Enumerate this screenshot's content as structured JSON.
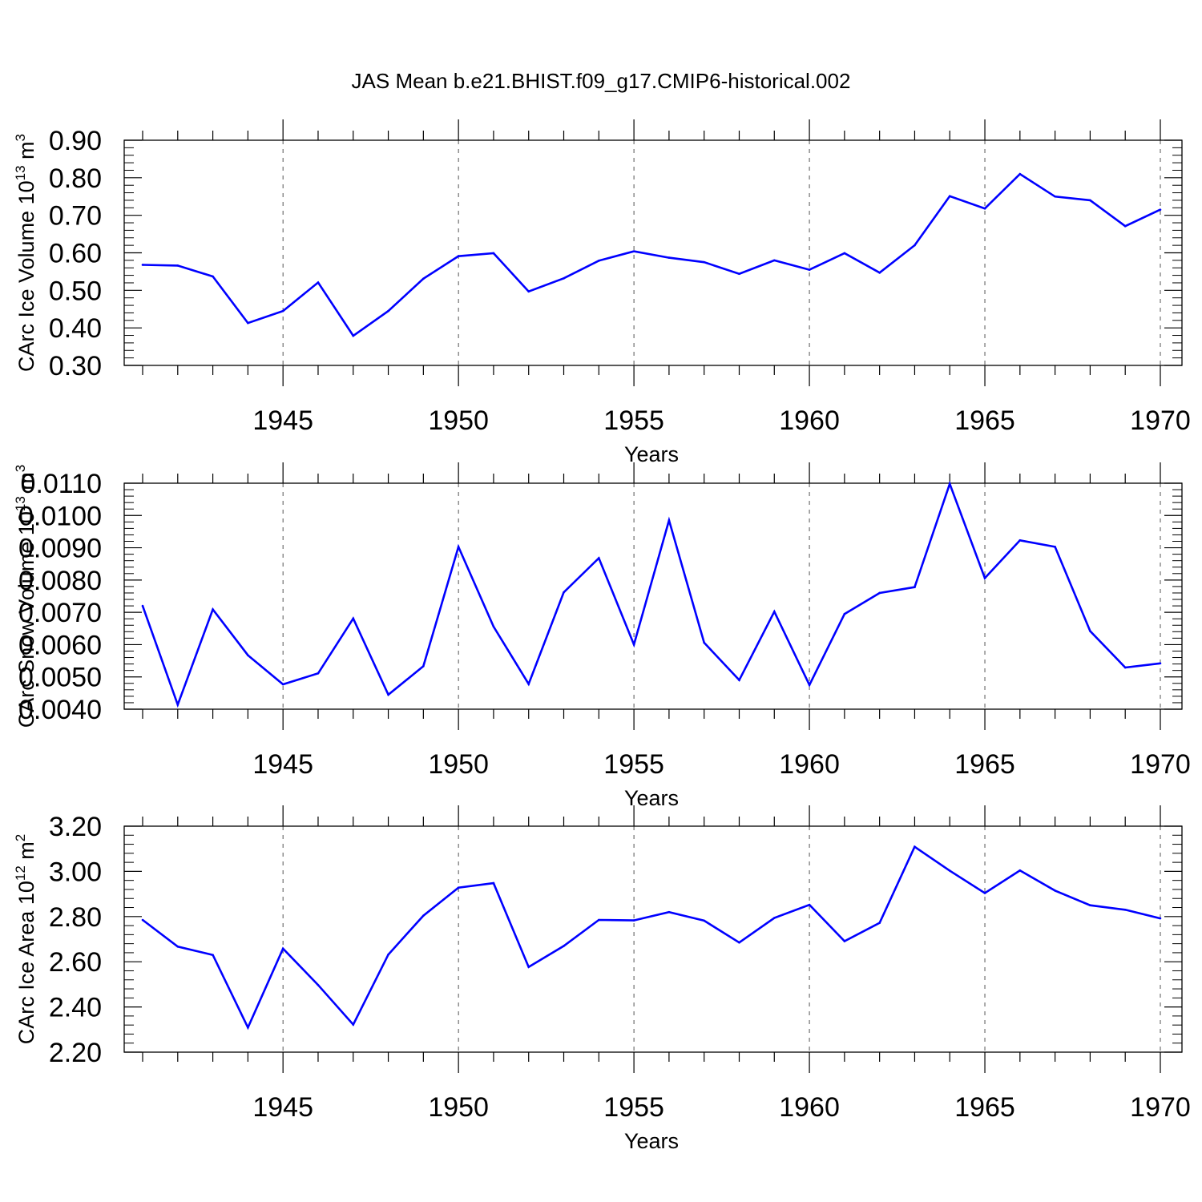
{
  "title": "JAS Mean b.e21.BHIST.f09_g17.CMIP6-historical.002",
  "colors": {
    "line": "#0000ff",
    "axis": "#000000",
    "grid": "#555555"
  },
  "chart_data": [
    {
      "type": "line",
      "xlabel": "Years",
      "ylabel": {
        "main": "CArc Ice Volume 10",
        "power": "13",
        "unit": " m",
        "unit_power": "3"
      },
      "xlim": [
        1941,
        1970
      ],
      "ylim": [
        0.3,
        0.9
      ],
      "y_ticks": [
        "0.30",
        "0.40",
        "0.50",
        "0.60",
        "0.70",
        "0.80",
        "0.90"
      ],
      "x_ticks": [
        "1945",
        "1950",
        "1955",
        "1960",
        "1965",
        "1970"
      ],
      "grid": "x-dashed",
      "series": [
        {
          "name": "CArc Ice Volume",
          "x": [
            1941,
            1942,
            1943,
            1944,
            1945,
            1946,
            1947,
            1948,
            1949,
            1950,
            1951,
            1952,
            1953,
            1954,
            1955,
            1956,
            1957,
            1958,
            1959,
            1960,
            1961,
            1962,
            1963,
            1964,
            1965,
            1966,
            1967,
            1968,
            1969,
            1970
          ],
          "values": [
            0.568,
            0.566,
            0.537,
            0.413,
            0.445,
            0.521,
            0.379,
            0.445,
            0.531,
            0.591,
            0.599,
            0.497,
            0.532,
            0.579,
            0.604,
            0.587,
            0.575,
            0.544,
            0.58,
            0.555,
            0.599,
            0.547,
            0.62,
            0.751,
            0.718,
            0.81,
            0.75,
            0.74,
            0.671,
            0.715
          ]
        }
      ]
    },
    {
      "type": "line",
      "xlabel": "Years",
      "ylabel": {
        "main": "CArc Snow Volume 10",
        "power": "13",
        "unit": " m",
        "unit_power": "3"
      },
      "xlim": [
        1941,
        1970
      ],
      "ylim": [
        0.004,
        0.011
      ],
      "y_ticks": [
        "0.0040",
        "0.0050",
        "0.0060",
        "0.0070",
        "0.0080",
        "0.0090",
        "0.0100",
        "0.0110"
      ],
      "x_ticks": [
        "1945",
        "1950",
        "1955",
        "1960",
        "1965",
        "1970"
      ],
      "grid": "x-dashed",
      "series": [
        {
          "name": "CArc Snow Volume",
          "x": [
            1941,
            1942,
            1943,
            1944,
            1945,
            1946,
            1947,
            1948,
            1949,
            1950,
            1951,
            1952,
            1953,
            1954,
            1955,
            1956,
            1957,
            1958,
            1959,
            1960,
            1961,
            1962,
            1963,
            1964,
            1965,
            1966,
            1967,
            1968,
            1969,
            1970
          ],
          "values": [
            0.0072,
            0.00414,
            0.00709,
            0.00567,
            0.00477,
            0.00511,
            0.00681,
            0.00445,
            0.00533,
            0.00903,
            0.00656,
            0.00478,
            0.00762,
            0.00868,
            0.006,
            0.00985,
            0.00606,
            0.0049,
            0.00702,
            0.00475,
            0.00695,
            0.0076,
            0.00778,
            0.01098,
            0.00806,
            0.00923,
            0.00903,
            0.00642,
            0.00529,
            0.00542
          ]
        }
      ]
    },
    {
      "type": "line",
      "xlabel": "Years",
      "ylabel": {
        "main": "CArc Ice Area 10",
        "power": "12",
        "unit": " m",
        "unit_power": "2"
      },
      "xlim": [
        1941,
        1970
      ],
      "ylim": [
        2.2,
        3.2
      ],
      "y_ticks": [
        "2.20",
        "2.40",
        "2.60",
        "2.80",
        "3.00",
        "3.20"
      ],
      "x_ticks": [
        "1945",
        "1950",
        "1955",
        "1960",
        "1965",
        "1970"
      ],
      "grid": "x-dashed",
      "series": [
        {
          "name": "CArc Ice Area",
          "x": [
            1941,
            1942,
            1943,
            1944,
            1945,
            1946,
            1947,
            1948,
            1949,
            1950,
            1951,
            1952,
            1953,
            1954,
            1955,
            1956,
            1957,
            1958,
            1959,
            1960,
            1961,
            1962,
            1963,
            1964,
            1965,
            1966,
            1967,
            1968,
            1969,
            1970
          ],
          "values": [
            2.785,
            2.667,
            2.63,
            2.309,
            2.658,
            2.497,
            2.322,
            2.632,
            2.804,
            2.928,
            2.948,
            2.577,
            2.67,
            2.785,
            2.783,
            2.82,
            2.782,
            2.685,
            2.794,
            2.852,
            2.691,
            2.772,
            3.109,
            3.003,
            2.904,
            3.004,
            2.915,
            2.85,
            2.83,
            2.792
          ]
        }
      ]
    }
  ]
}
